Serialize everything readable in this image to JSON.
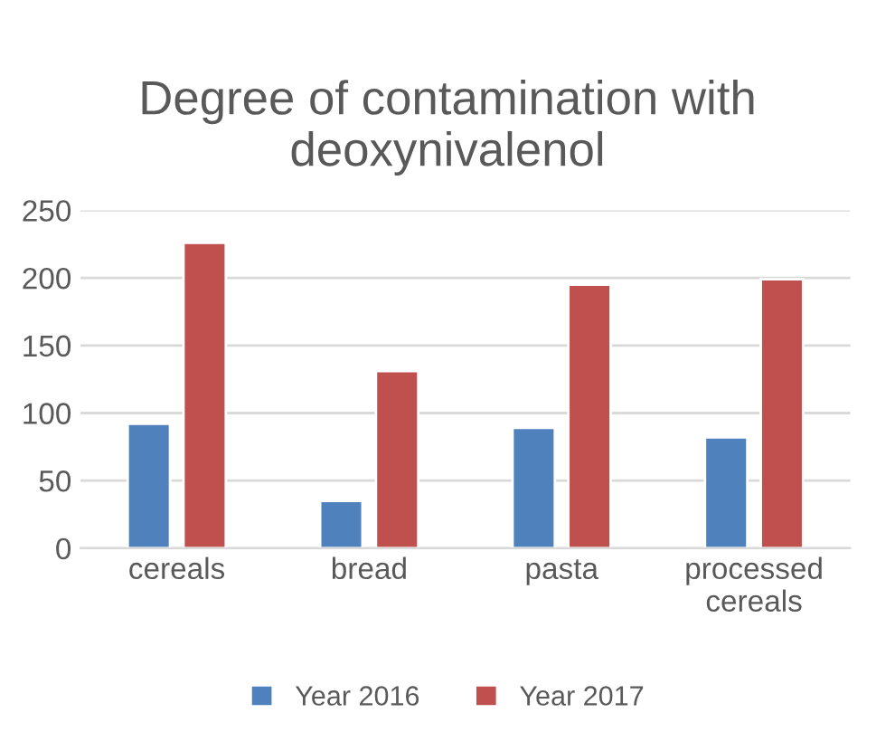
{
  "chart_data": {
    "type": "bar",
    "title": "Degree of contamination with deoxynivalenol",
    "categories": [
      "cereals",
      "bread",
      "pasta",
      "processed\ncereals"
    ],
    "series": [
      {
        "name": "Year 2016",
        "color": "#4f81bd",
        "values": [
          92,
          35,
          89,
          82
        ]
      },
      {
        "name": "Year 2017",
        "color": "#c0504d",
        "values": [
          226,
          131,
          195,
          199
        ]
      }
    ],
    "ylim": [
      0,
      250
    ],
    "yticks": [
      0,
      50,
      100,
      150,
      200,
      250
    ],
    "grid": "y",
    "legend": "bottom"
  }
}
